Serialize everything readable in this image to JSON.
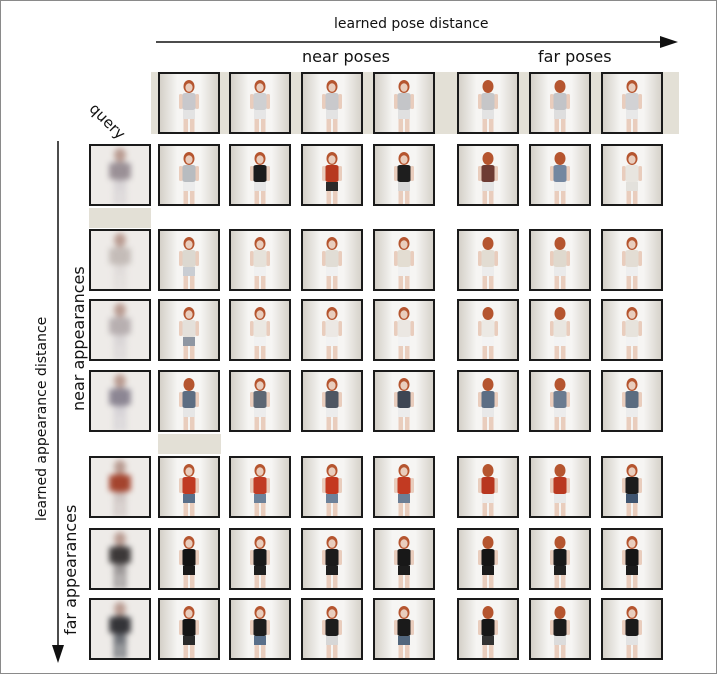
{
  "labels": {
    "pose_axis": "learned pose distance",
    "near_poses": "near poses",
    "far_poses": "far poses",
    "query": "query",
    "appearance_axis": "learned appearance distance",
    "near_appearances": "near appearances",
    "far_appearances": "far appearances"
  },
  "colors": {
    "border": "#1a1a1a",
    "strip": "#e3e0d6",
    "hair": "#b5552f"
  },
  "pose_queries": [
    {
      "top": "#c8c8cc",
      "bottom": "#e3e3e3",
      "view": "front"
    },
    {
      "top": "#cfd0d2",
      "bottom": "#e6e6e6",
      "view": "front"
    },
    {
      "top": "#c9c9cc",
      "bottom": "#e3e3e3",
      "view": "front"
    },
    {
      "top": "#c4c5c8",
      "bottom": "#e0e0e0",
      "view": "front"
    },
    {
      "top": "#c6c6c8",
      "bottom": "#e3e3e3",
      "view": "back"
    },
    {
      "top": "#c2c4c8",
      "bottom": "#dedede",
      "view": "back"
    },
    {
      "top": "#d2d2d4",
      "bottom": "#e8e8e8",
      "view": "front"
    }
  ],
  "rows": [
    {
      "top": "#9a9096",
      "bottom": "#d8d4d6",
      "cells": [
        {
          "top": "#b8bcc0",
          "bottom": "#ececec",
          "view": "front"
        },
        {
          "top": "#1c1c1c",
          "bottom": "#e6e6e6",
          "view": "front"
        },
        {
          "top": "#b7391f",
          "bottom": "#2a2a2a",
          "view": "front"
        },
        {
          "top": "#1e1e1e",
          "bottom": "#d8d8d8",
          "view": "front"
        },
        {
          "top": "#6e3b33",
          "bottom": "#e4e4e4",
          "view": "back"
        },
        {
          "top": "#7487a0",
          "bottom": "#ececec",
          "view": "back"
        },
        {
          "top": "#e8e5df",
          "bottom": "#e3e1dc",
          "view": "front"
        }
      ]
    },
    {
      "top": "#c4bcb8",
      "bottom": "#e0dcda",
      "cells": [
        {
          "top": "#dcd8d0",
          "bottom": "#c9cdd3",
          "view": "front"
        },
        {
          "top": "#e6e2da",
          "bottom": "#f0f0f0",
          "view": "front"
        },
        {
          "top": "#e1ddd5",
          "bottom": "#f0f0f0",
          "view": "front"
        },
        {
          "top": "#e3ddd2",
          "bottom": "#f0f0f0",
          "view": "front"
        },
        {
          "top": "#e2dcd2",
          "bottom": "#ececec",
          "view": "back"
        },
        {
          "top": "#dfd9ce",
          "bottom": "#eaeaea",
          "view": "back"
        },
        {
          "top": "#e3ddd4",
          "bottom": "#eeeeee",
          "view": "front"
        }
      ]
    },
    {
      "top": "#b7afb0",
      "bottom": "#d9d5d6",
      "cells": [
        {
          "top": "#e4e0da",
          "bottom": "#8e96a2",
          "view": "front"
        },
        {
          "top": "#ebe8e2",
          "bottom": "#f1f1f1",
          "view": "front"
        },
        {
          "top": "#ece8e4",
          "bottom": "#f2f2f2",
          "view": "front"
        },
        {
          "top": "#ebe7e2",
          "bottom": "#f2f2f2",
          "view": "front"
        },
        {
          "top": "#ece9e4",
          "bottom": "#f3f3f3",
          "view": "back"
        },
        {
          "top": "#e9e6e0",
          "bottom": "#f3f3f3",
          "view": "back"
        },
        {
          "top": "#e7e3dc",
          "bottom": "#f2f2f2",
          "view": "front"
        }
      ]
    },
    {
      "top": "#8c8693",
      "bottom": "#d6d3d7",
      "cells": [
        {
          "top": "#5c6d82",
          "bottom": "#e6e6e6",
          "view": "back"
        },
        {
          "top": "#5d6774",
          "bottom": "#ececec",
          "view": "front"
        },
        {
          "top": "#4f5662",
          "bottom": "#ececec",
          "view": "front"
        },
        {
          "top": "#3e4653",
          "bottom": "#ececec",
          "view": "front"
        },
        {
          "top": "#5c6e84",
          "bottom": "#e8e8e8",
          "view": "back"
        },
        {
          "top": "#6a7b90",
          "bottom": "#ececec",
          "view": "back"
        },
        {
          "top": "#5b6c80",
          "bottom": "#ececec",
          "view": "front"
        }
      ]
    },
    {
      "top": "#a4442e",
      "bottom": "#cfc6c4",
      "cells": [
        {
          "top": "#c03a22",
          "bottom": "#596f8a",
          "view": "front"
        },
        {
          "top": "#c13b24",
          "bottom": "#6e829a",
          "view": "front"
        },
        {
          "top": "#c4381f",
          "bottom": "#6e829a",
          "view": "front"
        },
        {
          "top": "#c23a22",
          "bottom": "#6c7f96",
          "view": "front"
        },
        {
          "top": "#b8361f",
          "bottom": "#ececec",
          "view": "back"
        },
        {
          "top": "#b93820",
          "bottom": "#e8e8e8",
          "view": "back"
        },
        {
          "top": "#1c1c1c",
          "bottom": "#405570",
          "view": "front"
        }
      ]
    },
    {
      "top": "#3c3838",
      "bottom": "#9a9696",
      "cells": [
        {
          "top": "#141414",
          "bottom": "#1a1a1a",
          "view": "front"
        },
        {
          "top": "#191919",
          "bottom": "#1f1f1f",
          "view": "front"
        },
        {
          "top": "#1b1b1b",
          "bottom": "#1f1f1f",
          "view": "front"
        },
        {
          "top": "#181818",
          "bottom": "#1d1d1d",
          "view": "front"
        },
        {
          "top": "#151515",
          "bottom": "#1b1b1b",
          "view": "back"
        },
        {
          "top": "#191919",
          "bottom": "#1f1f1f",
          "view": "back"
        },
        {
          "top": "#161616",
          "bottom": "#1c1c1c",
          "view": "front"
        }
      ]
    },
    {
      "top": "#343438",
      "bottom": "#6e7278",
      "cells": [
        {
          "top": "#151515",
          "bottom": "#2a2a2a",
          "view": "front"
        },
        {
          "top": "#1c1c1c",
          "bottom": "#596f8a",
          "view": "front"
        },
        {
          "top": "#1c1c1c",
          "bottom": "#d7d7d7",
          "view": "front"
        },
        {
          "top": "#1a1a1a",
          "bottom": "#51667d",
          "view": "front"
        },
        {
          "top": "#171717",
          "bottom": "#333333",
          "view": "back"
        },
        {
          "top": "#1b1b1b",
          "bottom": "#dcdcdc",
          "view": "back"
        },
        {
          "top": "#1a1a1a",
          "bottom": "#e3e3e3",
          "view": "front"
        }
      ]
    }
  ]
}
